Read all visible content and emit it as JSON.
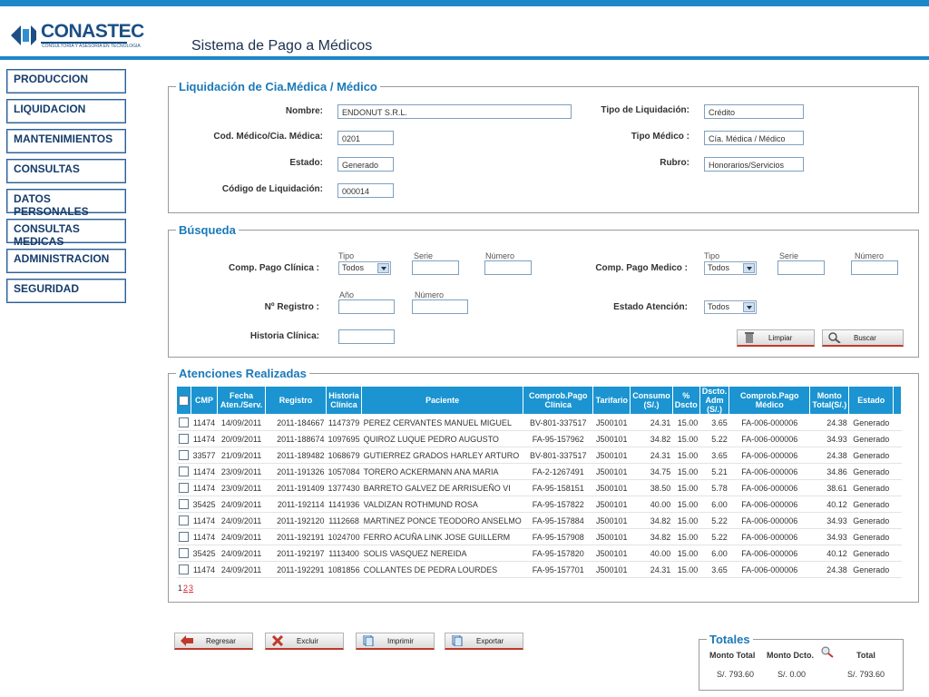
{
  "header": {
    "brand": "CONASTEC",
    "tagline": "CONSULTORIA Y ASESORIA EN TECNOLOGIA",
    "title": "Sistema de Pago a Médicos"
  },
  "menu": [
    "PRODUCCION",
    "LIQUIDACION",
    "MANTENIMIENTOS",
    "CONSULTAS",
    "DATOS PERSONALES",
    "CONSULTAS MEDICAS",
    "ADMINISTRACION",
    "SEGURIDAD"
  ],
  "liquidacion": {
    "legend": "Liquidación de Cia.Médica / Médico",
    "nombre_label": "Nombre:",
    "nombre": "ENDONUT S.R.L.",
    "cod_label": "Cod. Médico/Cia.  Médica:",
    "cod": "0201",
    "estado_label": "Estado:",
    "estado": "Generado",
    "codigo_label": "Código de Liquidación:",
    "codigo": "000014",
    "tipo_liq_label": "Tipo de Liquidación:",
    "tipo_liq": "Crédito",
    "tipo_medico_label": "Tipo Médico :",
    "tipo_medico": "Cía. Médica / Médico",
    "rubro_label": "Rubro:",
    "rubro": "Honorarios/Servicios"
  },
  "busqueda": {
    "legend": "Búsqueda",
    "comp_clinica_label": "Comp. Pago Clínica :",
    "comp_medico_label": "Comp. Pago Medico :",
    "tipo_sub": "Tipo",
    "serie_sub": "Serie",
    "numero_sub": "Número",
    "anio_sub": "Año",
    "tipo_value": "Todos",
    "registro_label": "Nº Registro :",
    "estado_atencion_label": "Estado Atención:",
    "estado_atencion_value": "Todos",
    "historia_label": "Historia Clínica:",
    "limpiar": "Limpiar",
    "buscar": "Buscar"
  },
  "atenciones": {
    "legend": "Atenciones Realizadas",
    "columns": [
      "CMP",
      "Fecha Aten./Serv.",
      "Registro",
      "Historia Clínica",
      "Paciente",
      "Comprob.Pago Clínica",
      "Tarifario",
      "Consumo (S/.)",
      "% Dscto",
      "Dscto. Adm (S/.)",
      "Comprob.Pago Médico",
      "Monto Total(S/.)",
      "Estado"
    ],
    "rows": [
      [
        "11474",
        "14/09/2011",
        "2011-184667",
        "1147379",
        "PEREZ CERVANTES MANUEL MIGUEL",
        "BV-801-337517",
        "J500101",
        "24.31",
        "15.00",
        "3.65",
        "FA-006-000006",
        "24.38",
        "Generado"
      ],
      [
        "11474",
        "20/09/2011",
        "2011-188674",
        "1097695",
        "QUIROZ LUQUE PEDRO AUGUSTO",
        "FA-95-157962",
        "J500101",
        "34.82",
        "15.00",
        "5.22",
        "FA-006-000006",
        "34.93",
        "Generado"
      ],
      [
        "33577",
        "21/09/2011",
        "2011-189482",
        "1068679",
        "GUTIERREZ GRADOS HARLEY ARTURO",
        "BV-801-337517",
        "J500101",
        "24.31",
        "15.00",
        "3.65",
        "FA-006-000006",
        "24.38",
        "Generado"
      ],
      [
        "11474",
        "23/09/2011",
        "2011-191326",
        "1057084",
        "TORERO ACKERMANN ANA MARIA",
        "FA-2-1267491",
        "J500101",
        "34.75",
        "15.00",
        "5.21",
        "FA-006-000006",
        "34.86",
        "Generado"
      ],
      [
        "11474",
        "23/09/2011",
        "2011-191409",
        "1377430",
        "BARRETO GALVEZ DE ARRISUEÑO VI",
        "FA-95-158151",
        "J500101",
        "38.50",
        "15.00",
        "5.78",
        "FA-006-000006",
        "38.61",
        "Generado"
      ],
      [
        "35425",
        "24/09/2011",
        "2011-192114",
        "1141936",
        "VALDIZAN ROTHMUND ROSA",
        "FA-95-157822",
        "J500101",
        "40.00",
        "15.00",
        "6.00",
        "FA-006-000006",
        "40.12",
        "Generado"
      ],
      [
        "11474",
        "24/09/2011",
        "2011-192120",
        "1112668",
        "MARTINEZ PONCE TEODORO ANSELMO",
        "FA-95-157884",
        "J500101",
        "34.82",
        "15.00",
        "5.22",
        "FA-006-000006",
        "34.93",
        "Generado"
      ],
      [
        "11474",
        "24/09/2011",
        "2011-192191",
        "1024700",
        "FERRO ACUÑA LINK JOSE GUILLERM",
        "FA-95-157908",
        "J500101",
        "34.82",
        "15.00",
        "5.22",
        "FA-006-000006",
        "34.93",
        "Generado"
      ],
      [
        "35425",
        "24/09/2011",
        "2011-192197",
        "1113400",
        "SOLIS VASQUEZ NEREIDA",
        "FA-95-157820",
        "J500101",
        "40.00",
        "15.00",
        "6.00",
        "FA-006-000006",
        "40.12",
        "Generado"
      ],
      [
        "11474",
        "24/09/2011",
        "2011-192291",
        "1081856",
        "COLLANTES DE PEDRA LOURDES",
        "FA-95-157701",
        "J500101",
        "24.31",
        "15.00",
        "3.65",
        "FA-006-000006",
        "24.38",
        "Generado"
      ]
    ],
    "pages": [
      "1",
      "2",
      "3"
    ]
  },
  "actions": {
    "regresar": "Regresar",
    "excluir": "Excluir",
    "imprimir": "Imprimir",
    "exportar": "Exportar"
  },
  "totales": {
    "legend": "Totales",
    "monto_total_label": "Monto Total",
    "monto_dcto_label": "Monto Dcto.",
    "total_label": "Total",
    "monto_total": "S/. 793.60",
    "monto_dcto": "S/. 0.00",
    "total": "S/. 793.60"
  }
}
